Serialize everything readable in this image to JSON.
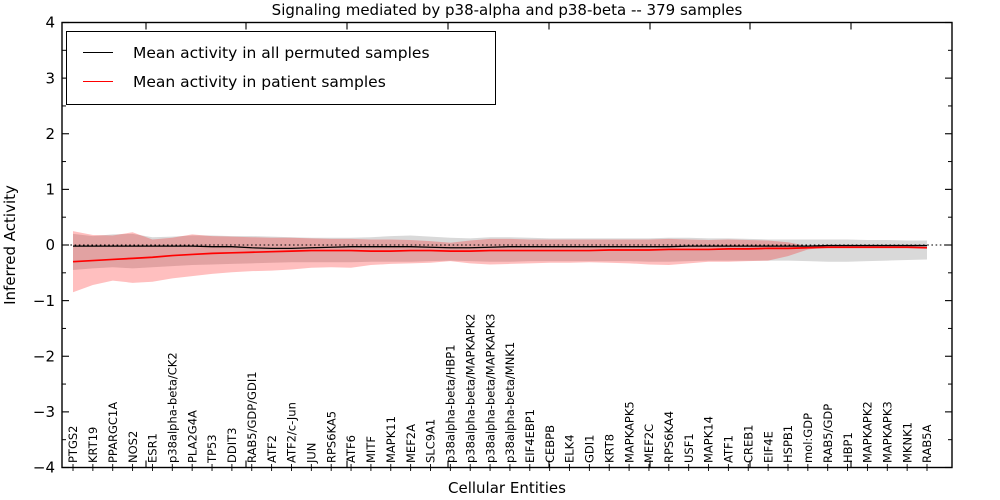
{
  "title": "Signaling mediated by p38-alpha and p38-beta -- 379 samples",
  "axes": {
    "xlabel": "Cellular Entities",
    "ylabel": "Inferred Activity",
    "yticks": [
      "4",
      "3",
      "2",
      "1",
      "0",
      "−1",
      "−2",
      "−3",
      "−4"
    ]
  },
  "legend": {
    "items": [
      {
        "label": "Mean activity in all permuted samples",
        "color": "#000000"
      },
      {
        "label": "Mean activity in patient samples",
        "color": "#ff0000"
      }
    ]
  },
  "chart_data": {
    "type": "line",
    "title": "Signaling mediated by p38-alpha and p38-beta -- 379 samples",
    "xlabel": "Cellular Entities",
    "ylabel": "Inferred Activity",
    "ylim": [
      -4,
      4
    ],
    "ytick_major_step": 1,
    "ytick_minor_step": 0.5,
    "grid": false,
    "legend_position": "upper left",
    "zero_line": {
      "value": 0,
      "style": "dotted",
      "color": "#000000"
    },
    "categories": [
      "PTGS2",
      "KRT19",
      "PPARGC1A",
      "NOS2",
      "ESR1",
      "p38alpha-beta/CK2",
      "PLA2G4A",
      "TP53",
      "DDIT3",
      "RAB5/GDP/GDI1",
      "ATF2",
      "ATF2/c-Jun",
      "JUN",
      "RPS6KA5",
      "ATF6",
      "MITF",
      "MAPK11",
      "MEF2A",
      "SLC9A1",
      "p38alpha-beta/HBP1",
      "p38alpha-beta/MAPKAPK2",
      "p38alpha-beta/MAPKAPK3",
      "p38alpha-beta/MNK1",
      "EIF4EBP1",
      "CEBPB",
      "ELK4",
      "GDI1",
      "KRT8",
      "MAPKAPK5",
      "MEF2C",
      "RPS6KA4",
      "USF1",
      "MAPK14",
      "ATF1",
      "CREB1",
      "EIF4E",
      "HSPB1",
      "mol:GDP",
      "RAB5/GDP",
      "HBP1",
      "MAPKAPK2",
      "MAPKAPK3",
      "MKNK1",
      "RAB5A"
    ],
    "series": [
      {
        "name": "Mean activity in all permuted samples",
        "color": "#000000",
        "values": [
          -0.02,
          -0.02,
          -0.02,
          -0.02,
          -0.02,
          -0.02,
          -0.02,
          -0.03,
          -0.03,
          -0.05,
          -0.06,
          -0.06,
          -0.05,
          -0.04,
          -0.03,
          -0.03,
          -0.03,
          -0.03,
          -0.04,
          -0.05,
          -0.05,
          -0.04,
          -0.03,
          -0.03,
          -0.03,
          -0.03,
          -0.03,
          -0.03,
          -0.03,
          -0.03,
          -0.03,
          -0.02,
          -0.02,
          -0.02,
          -0.02,
          -0.02,
          -0.02,
          -0.02,
          -0.01,
          -0.01,
          -0.01,
          -0.01,
          -0.01,
          -0.01
        ],
        "band": {
          "upper": [
            0.2,
            0.16,
            0.19,
            0.2,
            0.14,
            0.15,
            0.17,
            0.17,
            0.16,
            0.16,
            0.15,
            0.14,
            0.13,
            0.13,
            0.13,
            0.14,
            0.16,
            0.17,
            0.15,
            0.13,
            0.12,
            0.14,
            0.14,
            0.13,
            0.12,
            0.12,
            0.12,
            0.12,
            0.12,
            0.12,
            0.13,
            0.13,
            0.12,
            0.12,
            0.11,
            0.1,
            0.1,
            0.1,
            0.1,
            0.1,
            0.09,
            0.09,
            0.08,
            0.08
          ],
          "lower": [
            -0.45,
            -0.42,
            -0.4,
            -0.42,
            -0.4,
            -0.38,
            -0.36,
            -0.35,
            -0.34,
            -0.33,
            -0.32,
            -0.31,
            -0.31,
            -0.31,
            -0.31,
            -0.3,
            -0.3,
            -0.3,
            -0.29,
            -0.28,
            -0.29,
            -0.3,
            -0.3,
            -0.29,
            -0.29,
            -0.29,
            -0.29,
            -0.29,
            -0.29,
            -0.3,
            -0.3,
            -0.29,
            -0.28,
            -0.28,
            -0.28,
            -0.28,
            -0.28,
            -0.29,
            -0.3,
            -0.3,
            -0.29,
            -0.28,
            -0.27,
            -0.26
          ],
          "fill": "#808080",
          "fill_alpha": 0.3
        }
      },
      {
        "name": "Mean activity in patient samples",
        "color": "#ff0000",
        "values": [
          -0.3,
          -0.28,
          -0.26,
          -0.24,
          -0.22,
          -0.19,
          -0.17,
          -0.15,
          -0.14,
          -0.13,
          -0.12,
          -0.11,
          -0.1,
          -0.1,
          -0.1,
          -0.11,
          -0.11,
          -0.1,
          -0.1,
          -0.11,
          -0.11,
          -0.1,
          -0.1,
          -0.1,
          -0.1,
          -0.1,
          -0.1,
          -0.09,
          -0.09,
          -0.09,
          -0.08,
          -0.08,
          -0.08,
          -0.07,
          -0.07,
          -0.06,
          -0.06,
          -0.05,
          -0.04,
          -0.04,
          -0.04,
          -0.04,
          -0.04,
          -0.05
        ],
        "band": {
          "upper": [
            0.25,
            0.18,
            0.17,
            0.23,
            0.1,
            0.13,
            0.19,
            0.16,
            0.15,
            0.14,
            0.13,
            0.13,
            0.12,
            0.11,
            0.11,
            0.1,
            0.1,
            0.09,
            0.07,
            0.04,
            0.08,
            0.11,
            0.11,
            0.1,
            0.1,
            0.1,
            0.1,
            0.1,
            0.1,
            0.1,
            0.11,
            0.1,
            0.09,
            0.1,
            0.09,
            0.08,
            0.05,
            -0.02,
            -0.04,
            -0.04,
            -0.04,
            -0.04,
            -0.04,
            -0.05
          ],
          "lower": [
            -0.85,
            -0.72,
            -0.64,
            -0.68,
            -0.66,
            -0.6,
            -0.56,
            -0.52,
            -0.49,
            -0.47,
            -0.46,
            -0.44,
            -0.41,
            -0.4,
            -0.41,
            -0.36,
            -0.34,
            -0.33,
            -0.32,
            -0.29,
            -0.33,
            -0.35,
            -0.34,
            -0.33,
            -0.32,
            -0.32,
            -0.31,
            -0.32,
            -0.33,
            -0.35,
            -0.36,
            -0.33,
            -0.3,
            -0.3,
            -0.29,
            -0.28,
            -0.2,
            -0.08,
            -0.04,
            -0.04,
            -0.04,
            -0.04,
            -0.04,
            -0.05
          ],
          "fill": "#ff0000",
          "fill_alpha": 0.25
        }
      }
    ]
  }
}
